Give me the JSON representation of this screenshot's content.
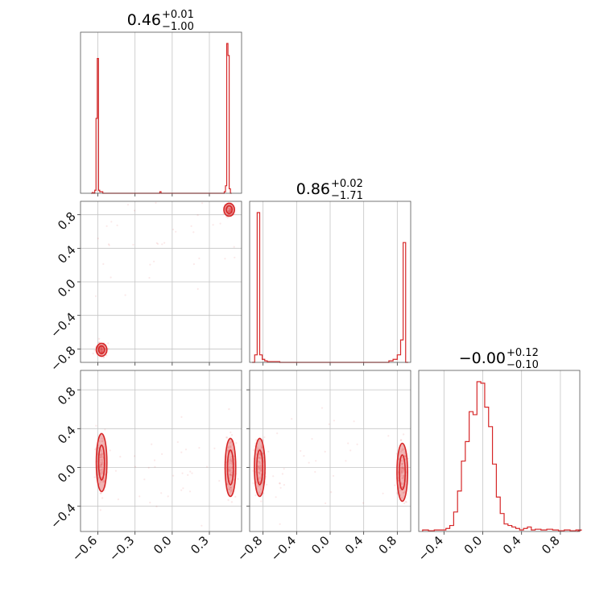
{
  "chart_data": {
    "type": "corner",
    "color": "#d62728",
    "parameters": [
      {
        "title": {
          "median": "0.46",
          "plus": "+0.01",
          "minus": "−1.00"
        },
        "range": [
          -0.74,
          0.56
        ],
        "ticks": [
          -0.6,
          -0.3,
          0.0,
          0.3
        ],
        "tick_labels": [
          "−0.6",
          "−0.3",
          "0.0",
          "0.3"
        ]
      },
      {
        "title": {
          "median": "0.86",
          "plus": "+0.02",
          "minus": "−1.71"
        },
        "range": [
          -0.96,
          0.96
        ],
        "ticks": [
          -0.8,
          -0.4,
          0.0,
          0.4,
          0.8
        ],
        "tick_labels": [
          "−0.8",
          "−0.4",
          "0.0",
          "0.4",
          "0.8"
        ]
      },
      {
        "title": {
          "median": "−0.00",
          "plus": "+0.12",
          "minus": "−0.10"
        },
        "range": [
          -0.66,
          1.0
        ],
        "ticks": [
          -0.4,
          0.0,
          0.4,
          0.8
        ],
        "tick_labels": [
          "−0.4",
          "0.0",
          "0.4",
          "0.8"
        ]
      }
    ],
    "histograms": [
      {
        "param": 0,
        "bins": [
          [
            -0.655,
            0.0
          ],
          [
            -0.645,
            0.005
          ],
          [
            -0.635,
            0.0
          ],
          [
            -0.625,
            0.02
          ],
          [
            -0.615,
            0.5
          ],
          [
            -0.605,
            0.9
          ],
          [
            -0.595,
            0.02
          ],
          [
            -0.585,
            0.01
          ],
          [
            -0.56,
            0.0
          ],
          [
            -0.1,
            0.01
          ],
          [
            -0.09,
            0.0
          ],
          [
            0.42,
            0.01
          ],
          [
            0.43,
            0.05
          ],
          [
            0.44,
            1.0
          ],
          [
            0.45,
            0.92
          ],
          [
            0.46,
            0.03
          ],
          [
            0.47,
            0.0
          ]
        ]
      },
      {
        "param": 1,
        "bins": [
          [
            -0.93,
            0.0
          ],
          [
            -0.9,
            0.05
          ],
          [
            -0.87,
            1.0
          ],
          [
            -0.84,
            0.05
          ],
          [
            -0.81,
            0.02
          ],
          [
            -0.78,
            0.01
          ],
          [
            -0.75,
            0.005
          ],
          [
            -0.7,
            0.005
          ],
          [
            -0.6,
            0.0
          ],
          [
            0.7,
            0.01
          ],
          [
            0.75,
            0.02
          ],
          [
            0.8,
            0.05
          ],
          [
            0.84,
            0.15
          ],
          [
            0.87,
            0.8
          ],
          [
            0.9,
            0.0
          ]
        ]
      },
      {
        "param": 2,
        "bins": [
          [
            -0.62,
            0.01
          ],
          [
            -0.56,
            0.005
          ],
          [
            -0.5,
            0.01
          ],
          [
            -0.44,
            0.01
          ],
          [
            -0.38,
            0.02
          ],
          [
            -0.34,
            0.04
          ],
          [
            -0.3,
            0.13
          ],
          [
            -0.26,
            0.27
          ],
          [
            -0.22,
            0.47
          ],
          [
            -0.18,
            0.6
          ],
          [
            -0.14,
            0.8
          ],
          [
            -0.1,
            0.78
          ],
          [
            -0.06,
            1.0
          ],
          [
            -0.02,
            0.99
          ],
          [
            0.02,
            0.83
          ],
          [
            0.06,
            0.7
          ],
          [
            0.1,
            0.45
          ],
          [
            0.14,
            0.23
          ],
          [
            0.18,
            0.12
          ],
          [
            0.22,
            0.05
          ],
          [
            0.26,
            0.04
          ],
          [
            0.3,
            0.03
          ],
          [
            0.34,
            0.02
          ],
          [
            0.38,
            0.01
          ],
          [
            0.42,
            0.02
          ],
          [
            0.46,
            0.03
          ],
          [
            0.5,
            0.01
          ],
          [
            0.54,
            0.015
          ],
          [
            0.6,
            0.01
          ],
          [
            0.66,
            0.015
          ],
          [
            0.72,
            0.01
          ],
          [
            0.78,
            0.005
          ],
          [
            0.84,
            0.01
          ],
          [
            0.9,
            0.005
          ],
          [
            0.96,
            0.01
          ]
        ]
      }
    ],
    "pairs": [
      {
        "x_param": 0,
        "y_param": 1,
        "modes": [
          [
            0.46,
            0.86
          ],
          [
            -0.57,
            -0.81
          ]
        ]
      },
      {
        "x_param": 0,
        "y_param": 2,
        "modes": [
          [
            -0.57,
            0.05
          ],
          [
            0.47,
            0.0
          ]
        ]
      },
      {
        "x_param": 1,
        "y_param": 2,
        "modes": [
          [
            -0.84,
            0.0
          ],
          [
            0.86,
            -0.05
          ]
        ]
      }
    ]
  }
}
